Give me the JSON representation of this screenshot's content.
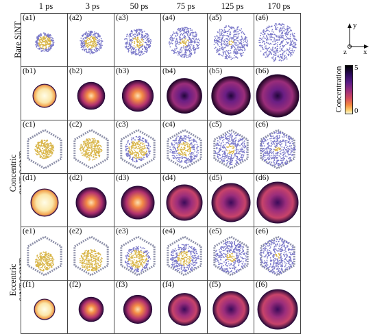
{
  "columns": [
    "1 ps",
    "3 ps",
    "50 ps",
    "75 ps",
    "125 ps",
    "170 ps"
  ],
  "rows": [
    {
      "key": "a",
      "label": "Bare SiNT",
      "panels": [
        "(a1)",
        "(a2)",
        "(a3)",
        "(a4)",
        "(a5)",
        "(a6)"
      ]
    },
    {
      "key": "b",
      "label": "",
      "panels": [
        "(b1)",
        "(b2)",
        "(b3)",
        "(b4)",
        "(b5)",
        "(b6)"
      ]
    },
    {
      "key": "c",
      "label": "",
      "panels": [
        "(c1)",
        "(c2)",
        "(c3)",
        "(c4)",
        "(c5)",
        "(c6)"
      ]
    },
    {
      "key": "d",
      "label": "",
      "panels": [
        "(d1)",
        "(d2)",
        "(d3)",
        "(d4)",
        "(d5)",
        "(d6)"
      ]
    },
    {
      "key": "e",
      "label": "",
      "panels": [
        "(e1)",
        "(e2)",
        "(e3)",
        "(e4)",
        "(e5)",
        "(e6)"
      ]
    },
    {
      "key": "f",
      "label": "",
      "panels": [
        "(f1)",
        "(f2)",
        "(f3)",
        "(f4)",
        "(f5)",
        "(f6)"
      ]
    }
  ],
  "group_labels": {
    "bare": "Bare SiNT",
    "concentric_line1": "Concentric",
    "concentric_line2": "SiNT@CNT",
    "eccentric_line1": "Eccentric",
    "eccentric_line2": "SiNT@CNT"
  },
  "axes": {
    "y": "y",
    "x": "x",
    "z": "z"
  },
  "colorbar": {
    "label": "Concentration",
    "max": "5",
    "min": "0"
  }
}
